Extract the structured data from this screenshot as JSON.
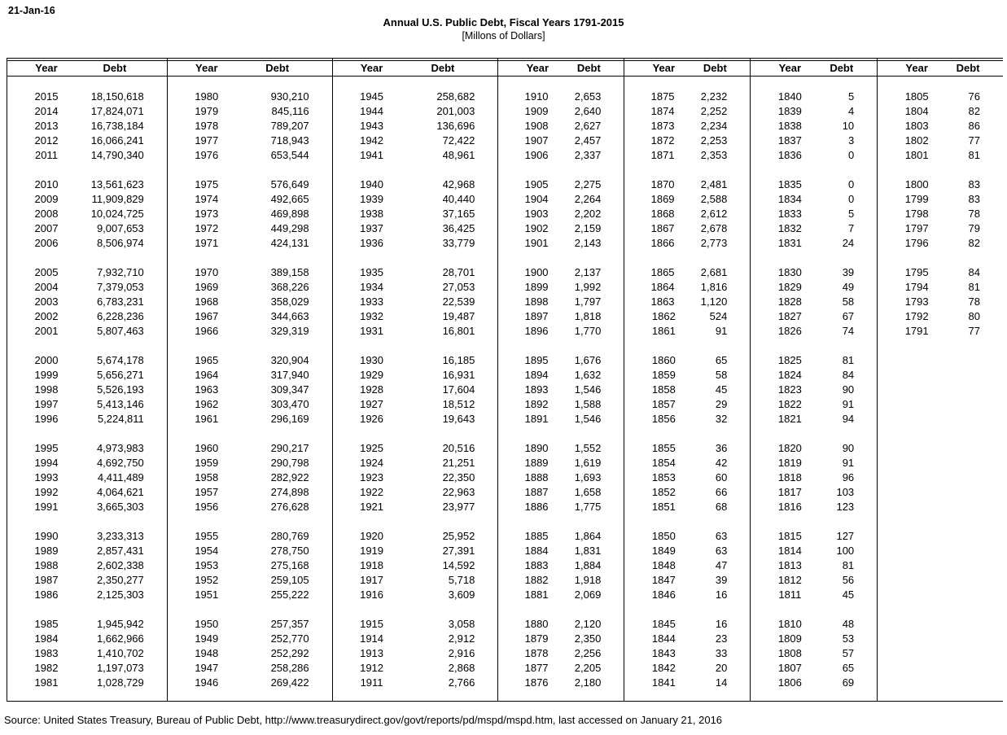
{
  "meta": {
    "date_label": "21-Jan-16",
    "title": "Annual U.S. Public Debt, Fiscal Years 1791-2015",
    "subtitle": "[Millons of Dollars]",
    "source": "Source: United States Treasury, Bureau of Public Debt, http://www.treasurydirect.gov/govt/reports/pd/mspd/mspd.htm, last accessed on January 21, 2016"
  },
  "table": {
    "header": {
      "year": "Year",
      "debt": "Debt"
    },
    "group_size": 5,
    "panels": [
      {
        "rows": [
          [
            "2015",
            "18,150,618"
          ],
          [
            "2014",
            "17,824,071"
          ],
          [
            "2013",
            "16,738,184"
          ],
          [
            "2012",
            "16,066,241"
          ],
          [
            "2011",
            "14,790,340"
          ],
          [
            "2010",
            "13,561,623"
          ],
          [
            "2009",
            "11,909,829"
          ],
          [
            "2008",
            "10,024,725"
          ],
          [
            "2007",
            "9,007,653"
          ],
          [
            "2006",
            "8,506,974"
          ],
          [
            "2005",
            "7,932,710"
          ],
          [
            "2004",
            "7,379,053"
          ],
          [
            "2003",
            "6,783,231"
          ],
          [
            "2002",
            "6,228,236"
          ],
          [
            "2001",
            "5,807,463"
          ],
          [
            "2000",
            "5,674,178"
          ],
          [
            "1999",
            "5,656,271"
          ],
          [
            "1998",
            "5,526,193"
          ],
          [
            "1997",
            "5,413,146"
          ],
          [
            "1996",
            "5,224,811"
          ],
          [
            "1995",
            "4,973,983"
          ],
          [
            "1994",
            "4,692,750"
          ],
          [
            "1993",
            "4,411,489"
          ],
          [
            "1992",
            "4,064,621"
          ],
          [
            "1991",
            "3,665,303"
          ],
          [
            "1990",
            "3,233,313"
          ],
          [
            "1989",
            "2,857,431"
          ],
          [
            "1988",
            "2,602,338"
          ],
          [
            "1987",
            "2,350,277"
          ],
          [
            "1986",
            "2,125,303"
          ],
          [
            "1985",
            "1,945,942"
          ],
          [
            "1984",
            "1,662,966"
          ],
          [
            "1983",
            "1,410,702"
          ],
          [
            "1982",
            "1,197,073"
          ],
          [
            "1981",
            "1,028,729"
          ]
        ]
      },
      {
        "rows": [
          [
            "1980",
            "930,210"
          ],
          [
            "1979",
            "845,116"
          ],
          [
            "1978",
            "789,207"
          ],
          [
            "1977",
            "718,943"
          ],
          [
            "1976",
            "653,544"
          ],
          [
            "1975",
            "576,649"
          ],
          [
            "1974",
            "492,665"
          ],
          [
            "1973",
            "469,898"
          ],
          [
            "1972",
            "449,298"
          ],
          [
            "1971",
            "424,131"
          ],
          [
            "1970",
            "389,158"
          ],
          [
            "1969",
            "368,226"
          ],
          [
            "1968",
            "358,029"
          ],
          [
            "1967",
            "344,663"
          ],
          [
            "1966",
            "329,319"
          ],
          [
            "1965",
            "320,904"
          ],
          [
            "1964",
            "317,940"
          ],
          [
            "1963",
            "309,347"
          ],
          [
            "1962",
            "303,470"
          ],
          [
            "1961",
            "296,169"
          ],
          [
            "1960",
            "290,217"
          ],
          [
            "1959",
            "290,798"
          ],
          [
            "1958",
            "282,922"
          ],
          [
            "1957",
            "274,898"
          ],
          [
            "1956",
            "276,628"
          ],
          [
            "1955",
            "280,769"
          ],
          [
            "1954",
            "278,750"
          ],
          [
            "1953",
            "275,168"
          ],
          [
            "1952",
            "259,105"
          ],
          [
            "1951",
            "255,222"
          ],
          [
            "1950",
            "257,357"
          ],
          [
            "1949",
            "252,770"
          ],
          [
            "1948",
            "252,292"
          ],
          [
            "1947",
            "258,286"
          ],
          [
            "1946",
            "269,422"
          ]
        ]
      },
      {
        "rows": [
          [
            "1945",
            "258,682"
          ],
          [
            "1944",
            "201,003"
          ],
          [
            "1943",
            "136,696"
          ],
          [
            "1942",
            "72,422"
          ],
          [
            "1941",
            "48,961"
          ],
          [
            "1940",
            "42,968"
          ],
          [
            "1939",
            "40,440"
          ],
          [
            "1938",
            "37,165"
          ],
          [
            "1937",
            "36,425"
          ],
          [
            "1936",
            "33,779"
          ],
          [
            "1935",
            "28,701"
          ],
          [
            "1934",
            "27,053"
          ],
          [
            "1933",
            "22,539"
          ],
          [
            "1932",
            "19,487"
          ],
          [
            "1931",
            "16,801"
          ],
          [
            "1930",
            "16,185"
          ],
          [
            "1929",
            "16,931"
          ],
          [
            "1928",
            "17,604"
          ],
          [
            "1927",
            "18,512"
          ],
          [
            "1926",
            "19,643"
          ],
          [
            "1925",
            "20,516"
          ],
          [
            "1924",
            "21,251"
          ],
          [
            "1923",
            "22,350"
          ],
          [
            "1922",
            "22,963"
          ],
          [
            "1921",
            "23,977"
          ],
          [
            "1920",
            "25,952"
          ],
          [
            "1919",
            "27,391"
          ],
          [
            "1918",
            "14,592"
          ],
          [
            "1917",
            "5,718"
          ],
          [
            "1916",
            "3,609"
          ],
          [
            "1915",
            "3,058"
          ],
          [
            "1914",
            "2,912"
          ],
          [
            "1913",
            "2,916"
          ],
          [
            "1912",
            "2,868"
          ],
          [
            "1911",
            "2,766"
          ]
        ]
      },
      {
        "rows": [
          [
            "1910",
            "2,653"
          ],
          [
            "1909",
            "2,640"
          ],
          [
            "1908",
            "2,627"
          ],
          [
            "1907",
            "2,457"
          ],
          [
            "1906",
            "2,337"
          ],
          [
            "1905",
            "2,275"
          ],
          [
            "1904",
            "2,264"
          ],
          [
            "1903",
            "2,202"
          ],
          [
            "1902",
            "2,159"
          ],
          [
            "1901",
            "2,143"
          ],
          [
            "1900",
            "2,137"
          ],
          [
            "1899",
            "1,992"
          ],
          [
            "1898",
            "1,797"
          ],
          [
            "1897",
            "1,818"
          ],
          [
            "1896",
            "1,770"
          ],
          [
            "1895",
            "1,676"
          ],
          [
            "1894",
            "1,632"
          ],
          [
            "1893",
            "1,546"
          ],
          [
            "1892",
            "1,588"
          ],
          [
            "1891",
            "1,546"
          ],
          [
            "1890",
            "1,552"
          ],
          [
            "1889",
            "1,619"
          ],
          [
            "1888",
            "1,693"
          ],
          [
            "1887",
            "1,658"
          ],
          [
            "1886",
            "1,775"
          ],
          [
            "1885",
            "1,864"
          ],
          [
            "1884",
            "1,831"
          ],
          [
            "1883",
            "1,884"
          ],
          [
            "1882",
            "1,918"
          ],
          [
            "1881",
            "2,069"
          ],
          [
            "1880",
            "2,120"
          ],
          [
            "1879",
            "2,350"
          ],
          [
            "1878",
            "2,256"
          ],
          [
            "1877",
            "2,205"
          ],
          [
            "1876",
            "2,180"
          ]
        ]
      },
      {
        "rows": [
          [
            "1875",
            "2,232"
          ],
          [
            "1874",
            "2,252"
          ],
          [
            "1873",
            "2,234"
          ],
          [
            "1872",
            "2,253"
          ],
          [
            "1871",
            "2,353"
          ],
          [
            "1870",
            "2,481"
          ],
          [
            "1869",
            "2,588"
          ],
          [
            "1868",
            "2,612"
          ],
          [
            "1867",
            "2,678"
          ],
          [
            "1866",
            "2,773"
          ],
          [
            "1865",
            "2,681"
          ],
          [
            "1864",
            "1,816"
          ],
          [
            "1863",
            "1,120"
          ],
          [
            "1862",
            "524"
          ],
          [
            "1861",
            "91"
          ],
          [
            "1860",
            "65"
          ],
          [
            "1859",
            "58"
          ],
          [
            "1858",
            "45"
          ],
          [
            "1857",
            "29"
          ],
          [
            "1856",
            "32"
          ],
          [
            "1855",
            "36"
          ],
          [
            "1854",
            "42"
          ],
          [
            "1853",
            "60"
          ],
          [
            "1852",
            "66"
          ],
          [
            "1851",
            "68"
          ],
          [
            "1850",
            "63"
          ],
          [
            "1849",
            "63"
          ],
          [
            "1848",
            "47"
          ],
          [
            "1847",
            "39"
          ],
          [
            "1846",
            "16"
          ],
          [
            "1845",
            "16"
          ],
          [
            "1844",
            "23"
          ],
          [
            "1843",
            "33"
          ],
          [
            "1842",
            "20"
          ],
          [
            "1841",
            "14"
          ]
        ]
      },
      {
        "rows": [
          [
            "1840",
            "5"
          ],
          [
            "1839",
            "4"
          ],
          [
            "1838",
            "10"
          ],
          [
            "1837",
            "3"
          ],
          [
            "1836",
            "0"
          ],
          [
            "1835",
            "0"
          ],
          [
            "1834",
            "0"
          ],
          [
            "1833",
            "5"
          ],
          [
            "1832",
            "7"
          ],
          [
            "1831",
            "24"
          ],
          [
            "1830",
            "39"
          ],
          [
            "1829",
            "49"
          ],
          [
            "1828",
            "58"
          ],
          [
            "1827",
            "67"
          ],
          [
            "1826",
            "74"
          ],
          [
            "1825",
            "81"
          ],
          [
            "1824",
            "84"
          ],
          [
            "1823",
            "90"
          ],
          [
            "1822",
            "91"
          ],
          [
            "1821",
            "94"
          ],
          [
            "1820",
            "90"
          ],
          [
            "1819",
            "91"
          ],
          [
            "1818",
            "96"
          ],
          [
            "1817",
            "103"
          ],
          [
            "1816",
            "123"
          ],
          [
            "1815",
            "127"
          ],
          [
            "1814",
            "100"
          ],
          [
            "1813",
            "81"
          ],
          [
            "1812",
            "56"
          ],
          [
            "1811",
            "45"
          ],
          [
            "1810",
            "48"
          ],
          [
            "1809",
            "53"
          ],
          [
            "1808",
            "57"
          ],
          [
            "1807",
            "65"
          ],
          [
            "1806",
            "69"
          ]
        ]
      },
      {
        "rows": [
          [
            "1805",
            "76"
          ],
          [
            "1804",
            "82"
          ],
          [
            "1803",
            "86"
          ],
          [
            "1802",
            "77"
          ],
          [
            "1801",
            "81"
          ],
          [
            "1800",
            "83"
          ],
          [
            "1799",
            "83"
          ],
          [
            "1798",
            "78"
          ],
          [
            "1797",
            "79"
          ],
          [
            "1796",
            "82"
          ],
          [
            "1795",
            "84"
          ],
          [
            "1794",
            "81"
          ],
          [
            "1793",
            "78"
          ],
          [
            "1792",
            "80"
          ],
          [
            "1791",
            "77"
          ]
        ]
      }
    ]
  }
}
